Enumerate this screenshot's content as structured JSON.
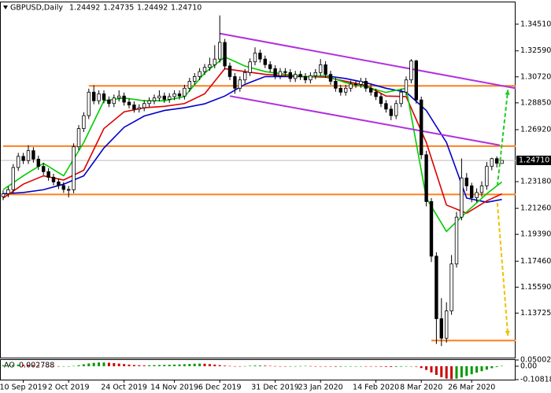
{
  "chart_data": {
    "type": "candlestick",
    "header": {
      "symbol": "GBPUSD,Daily",
      "ohlc_labels": [
        "1.24492",
        "1.24735",
        "1.24492",
        "1.24710"
      ]
    },
    "categories": [
      null,
      null,
      null,
      null,
      "10 Sep 2019",
      null,
      null,
      null,
      null,
      null,
      null,
      null,
      null,
      "2 Oct 2019",
      null,
      null,
      null,
      null,
      null,
      null,
      null,
      null,
      null,
      null,
      "24 Oct 2019",
      null,
      null,
      null,
      null,
      null,
      null,
      null,
      null,
      null,
      "14 Nov 2019",
      null,
      null,
      null,
      null,
      null,
      null,
      null,
      null,
      "6 Dec 2019",
      null,
      null,
      null,
      null,
      null,
      null,
      null,
      null,
      null,
      null,
      "31 Dec 2019",
      null,
      null,
      null,
      null,
      null,
      null,
      null,
      null,
      "23 Jan 2020",
      null,
      null,
      null,
      null,
      null,
      null,
      null,
      null,
      null,
      null,
      "14 Feb 2020",
      null,
      null,
      null,
      null,
      null,
      null,
      null,
      null,
      "8 Mar 2020",
      null,
      null,
      null,
      null,
      null,
      null,
      null,
      null,
      null,
      "26 Mar 2020",
      null,
      null,
      null,
      null,
      null,
      null
    ],
    "open": [
      1.221,
      1.2231,
      1.226,
      1.242,
      1.25,
      1.247,
      1.2541,
      1.248,
      1.2428,
      1.239,
      1.235,
      1.2316,
      1.229,
      1.2262,
      1.226,
      1.2569,
      1.27,
      1.2793,
      1.2962,
      1.29,
      1.295,
      1.2906,
      1.288,
      1.292,
      1.2934,
      1.289,
      1.287,
      1.284,
      1.285,
      1.288,
      1.29,
      1.292,
      1.2934,
      1.291,
      1.293,
      1.295,
      1.2934,
      1.299,
      1.304,
      1.3074,
      1.311,
      1.314,
      1.3159,
      1.32,
      1.332,
      1.315,
      1.3074,
      1.299,
      1.305,
      1.3103,
      1.318,
      1.3243,
      1.32,
      1.316,
      1.3131,
      1.308,
      1.311,
      1.3103,
      1.306,
      1.309,
      1.3074,
      1.305,
      1.308,
      1.3103,
      1.3159,
      1.309,
      1.304,
      1.299,
      1.2962,
      1.299,
      1.302,
      1.3018,
      1.304,
      1.299,
      1.2962,
      1.293,
      1.288,
      1.284,
      1.2793,
      1.288,
      1.2962,
      1.305,
      1.3187,
      1.2906,
      1.2512,
      1.2175,
      1.1782,
      1.1332,
      1.1192,
      1.1388,
      1.1726,
      1.2063,
      1.2344,
      1.2288,
      1.2203,
      1.224,
      1.2288,
      1.2428,
      1.2484,
      1.24492
    ],
    "high": [
      1.2256,
      1.2285,
      1.2445,
      1.2525,
      1.2525,
      1.258,
      1.2566,
      1.2505,
      1.2453,
      1.2415,
      1.2375,
      1.2341,
      1.2315,
      1.2287,
      1.2594,
      1.2725,
      1.2818,
      1.2987,
      1.3012,
      1.2975,
      1.2975,
      1.2931,
      1.2945,
      1.2975,
      1.2959,
      1.2915,
      1.2895,
      1.2875,
      1.2905,
      1.2925,
      1.2945,
      1.2975,
      1.2959,
      1.2955,
      1.2975,
      1.2975,
      1.3015,
      1.3065,
      1.3099,
      1.3135,
      1.3165,
      1.321,
      1.33,
      1.3514,
      1.3345,
      1.3175,
      1.3099,
      1.3075,
      1.3128,
      1.3205,
      1.3284,
      1.3268,
      1.3225,
      1.3185,
      1.3156,
      1.3135,
      1.3135,
      1.3128,
      1.3115,
      1.3115,
      1.3099,
      1.3105,
      1.3128,
      1.32,
      1.3184,
      1.3115,
      1.3065,
      1.3015,
      1.3015,
      1.3045,
      1.3045,
      1.3065,
      1.3065,
      1.3015,
      1.2987,
      1.2955,
      1.2905,
      1.2865,
      1.2905,
      1.2987,
      1.3075,
      1.32,
      1.3195,
      1.293,
      1.254,
      1.22,
      1.181,
      1.148,
      1.145,
      1.179,
      1.21,
      1.2485,
      1.238,
      1.231,
      1.227,
      1.232,
      1.246,
      1.249,
      1.25,
      1.24735
    ],
    "low": [
      1.2185,
      1.2206,
      1.2235,
      1.2395,
      1.2445,
      1.2445,
      1.2455,
      1.2403,
      1.2365,
      1.2325,
      1.2291,
      1.2265,
      1.2237,
      1.2205,
      1.2235,
      1.2544,
      1.2675,
      1.2768,
      1.2875,
      1.2875,
      1.2881,
      1.2855,
      1.2855,
      1.2895,
      1.2865,
      1.2845,
      1.2815,
      1.2815,
      1.2825,
      1.2855,
      1.2875,
      1.2895,
      1.2885,
      1.2885,
      1.2905,
      1.2909,
      1.2909,
      1.2965,
      1.3015,
      1.3049,
      1.3085,
      1.3115,
      1.3134,
      1.3175,
      1.3125,
      1.3049,
      1.295,
      1.2965,
      1.3025,
      1.3078,
      1.3155,
      1.3175,
      1.3135,
      1.3106,
      1.3055,
      1.3055,
      1.3078,
      1.3035,
      1.3035,
      1.3049,
      1.3025,
      1.3025,
      1.3055,
      1.3078,
      1.3065,
      1.3015,
      1.2965,
      1.2937,
      1.2937,
      1.2965,
      1.2993,
      1.2993,
      1.2965,
      1.2937,
      1.2905,
      1.2855,
      1.2815,
      1.276,
      1.2768,
      1.2855,
      1.2937,
      1.3025,
      1.288,
      1.248,
      1.214,
      1.174,
      1.115,
      1.1135,
      1.116,
      1.136,
      1.17,
      1.204,
      1.225,
      1.217,
      1.217,
      1.221,
      1.226,
      1.24,
      1.242,
      1.24492
    ],
    "close": [
      1.2231,
      1.226,
      1.242,
      1.25,
      1.247,
      1.2541,
      1.248,
      1.2428,
      1.239,
      1.235,
      1.2316,
      1.229,
      1.2262,
      1.226,
      1.2569,
      1.27,
      1.2793,
      1.2962,
      1.29,
      1.295,
      1.2906,
      1.288,
      1.292,
      1.2934,
      1.289,
      1.287,
      1.284,
      1.285,
      1.288,
      1.29,
      1.292,
      1.2934,
      1.291,
      1.293,
      1.295,
      1.2934,
      1.299,
      1.304,
      1.3074,
      1.311,
      1.314,
      1.3159,
      1.32,
      1.332,
      1.315,
      1.3074,
      1.299,
      1.305,
      1.3103,
      1.318,
      1.3243,
      1.32,
      1.316,
      1.3131,
      1.308,
      1.311,
      1.3103,
      1.306,
      1.309,
      1.3074,
      1.305,
      1.308,
      1.3103,
      1.3159,
      1.309,
      1.304,
      1.299,
      1.2962,
      1.299,
      1.302,
      1.3018,
      1.304,
      1.299,
      1.2962,
      1.293,
      1.288,
      1.284,
      1.2793,
      1.288,
      1.2962,
      1.305,
      1.3187,
      1.2906,
      1.2512,
      1.2175,
      1.1782,
      1.1332,
      1.1192,
      1.1388,
      1.1726,
      1.2063,
      1.2344,
      1.2288,
      1.2203,
      1.224,
      1.2288,
      1.2428,
      1.2484,
      1.245,
      1.2471
    ],
    "candle_color": "#000000",
    "ylim": [
      1.1052,
      1.3608
    ],
    "yticks": [
      {
        "value": 1.3451,
        "label": "1.34510"
      },
      {
        "value": 1.3259,
        "label": "1.32590"
      },
      {
        "value": 1.3072,
        "label": "1.30720"
      },
      {
        "value": 1.2885,
        "label": "1.28850"
      },
      {
        "value": 1.2692,
        "label": "1.26920"
      },
      {
        "value": 1.2318,
        "label": "1.23180"
      },
      {
        "value": 1.2126,
        "label": "1.21260"
      },
      {
        "value": 1.1939,
        "label": "1.19390"
      },
      {
        "value": 1.1746,
        "label": "1.17460"
      },
      {
        "value": 1.1559,
        "label": "1.15590"
      },
      1.13725
    ],
    "current_price": {
      "value": 1.2471,
      "label": "1.24710"
    },
    "series": [
      {
        "color": "#0000cc",
        "x": [
          0,
          4,
          8,
          12,
          16,
          20,
          24,
          28,
          32,
          36,
          40,
          44,
          48,
          52,
          56,
          60,
          64,
          68,
          72,
          76,
          80,
          84,
          88,
          92,
          96,
          99
        ],
        "values": [
          1.2231,
          1.224,
          1.226,
          1.23,
          1.236,
          1.256,
          1.2709,
          1.279,
          1.283,
          1.285,
          1.2878,
          1.2934,
          1.3018,
          1.3074,
          1.3074,
          1.3074,
          1.308,
          1.306,
          1.303,
          1.299,
          1.2962,
          1.283,
          1.26,
          1.22,
          1.217,
          1.219
        ]
      },
      {
        "color": "#dd0000",
        "x": [
          0,
          4,
          8,
          12,
          16,
          20,
          24,
          28,
          32,
          36,
          40,
          44,
          48,
          52,
          56,
          60,
          64,
          68,
          72,
          76,
          80,
          84,
          88,
          92,
          96,
          99
        ],
        "values": [
          1.22,
          1.23,
          1.236,
          1.233,
          1.24,
          1.27,
          1.282,
          1.285,
          1.286,
          1.288,
          1.295,
          1.3131,
          1.311,
          1.309,
          1.308,
          1.3074,
          1.307,
          1.304,
          1.301,
          1.2934,
          1.293,
          1.26,
          1.215,
          1.2091,
          1.218,
          1.223
        ]
      },
      {
        "color": "#00cc00",
        "x": [
          0,
          4,
          8,
          12,
          16,
          20,
          24,
          28,
          32,
          36,
          40,
          44,
          48,
          52,
          56,
          60,
          64,
          68,
          72,
          76,
          80,
          84,
          88,
          92,
          96,
          99
        ],
        "values": [
          1.226,
          1.236,
          1.245,
          1.236,
          1.26,
          1.29,
          1.292,
          1.29,
          1.29,
          1.293,
          1.31,
          1.3215,
          1.315,
          1.311,
          1.309,
          1.3074,
          1.308,
          1.303,
          1.3,
          1.296,
          1.299,
          1.22,
          1.196,
          1.21,
          1.2231,
          1.2316
        ]
      }
    ],
    "level_color": "#ff7f1e",
    "levels": [
      {
        "price": 1.3007,
        "from": 17
      },
      {
        "price": 1.2574,
        "from": 0
      },
      {
        "price": 1.2226,
        "from": 0
      },
      {
        "price": 1.1175,
        "from": 85
      }
    ],
    "channel": {
      "color": "#b030e0",
      "lines": [
        {
          "x": [
            43,
            101.7
          ],
          "y": [
            1.3384,
            1.299
          ]
        },
        {
          "x": [
            45,
            98.6
          ],
          "y": [
            1.2934,
            1.258
          ]
        }
      ]
    },
    "arrows": [
      {
        "color": "#22cc22",
        "x": [
          98.1,
          100.2
        ],
        "y": [
          1.2288,
          1.2979
        ]
      },
      {
        "color": "#f0c000",
        "x": [
          98.1,
          100.2
        ],
        "y": [
          1.2164,
          1.1209
        ]
      }
    ],
    "indicator": {
      "name": "AO",
      "up_color": "#009900",
      "down_color": "#cc0000",
      "ylim": [
        -0.108184,
        0.050021
      ],
      "yticks": [
        0.050021,
        {
          "value": 0,
          "label": "0.00"
        },
        -0.108184
      ],
      "values": [
        0.008,
        0.01,
        0.012,
        0.013,
        0.012,
        0.011,
        0.009,
        0.006,
        0.003,
        0.0,
        -0.002,
        -0.003,
        -0.003,
        -0.002,
        0.002,
        0.008,
        0.015,
        0.022,
        0.027,
        0.03,
        0.03,
        0.028,
        0.025,
        0.021,
        0.017,
        0.013,
        0.01,
        0.008,
        0.007,
        0.008,
        0.009,
        0.01,
        0.011,
        0.012,
        0.013,
        0.014,
        0.016,
        0.018,
        0.02,
        0.021,
        0.02,
        0.017,
        0.013,
        0.009,
        0.005,
        0.002,
        0.0,
        -0.001,
        0.001,
        0.004,
        0.006,
        0.006,
        0.005,
        0.003,
        0.001,
        0.0,
        -0.001,
        -0.001,
        0.0,
        0.001,
        0.002,
        0.001,
        0.0,
        -0.001,
        -0.002,
        -0.003,
        -0.004,
        -0.004,
        -0.003,
        -0.002,
        -0.001,
        0.0,
        -0.001,
        -0.002,
        -0.003,
        -0.004,
        -0.005,
        -0.006,
        -0.005,
        -0.004,
        -0.002,
        0.0,
        -0.004,
        -0.015,
        -0.03,
        -0.05,
        -0.07,
        -0.088,
        -0.1,
        -0.104,
        -0.1,
        -0.09,
        -0.078,
        -0.065,
        -0.052,
        -0.04,
        -0.028,
        -0.016,
        -0.006,
        0.002788
      ]
    }
  }
}
